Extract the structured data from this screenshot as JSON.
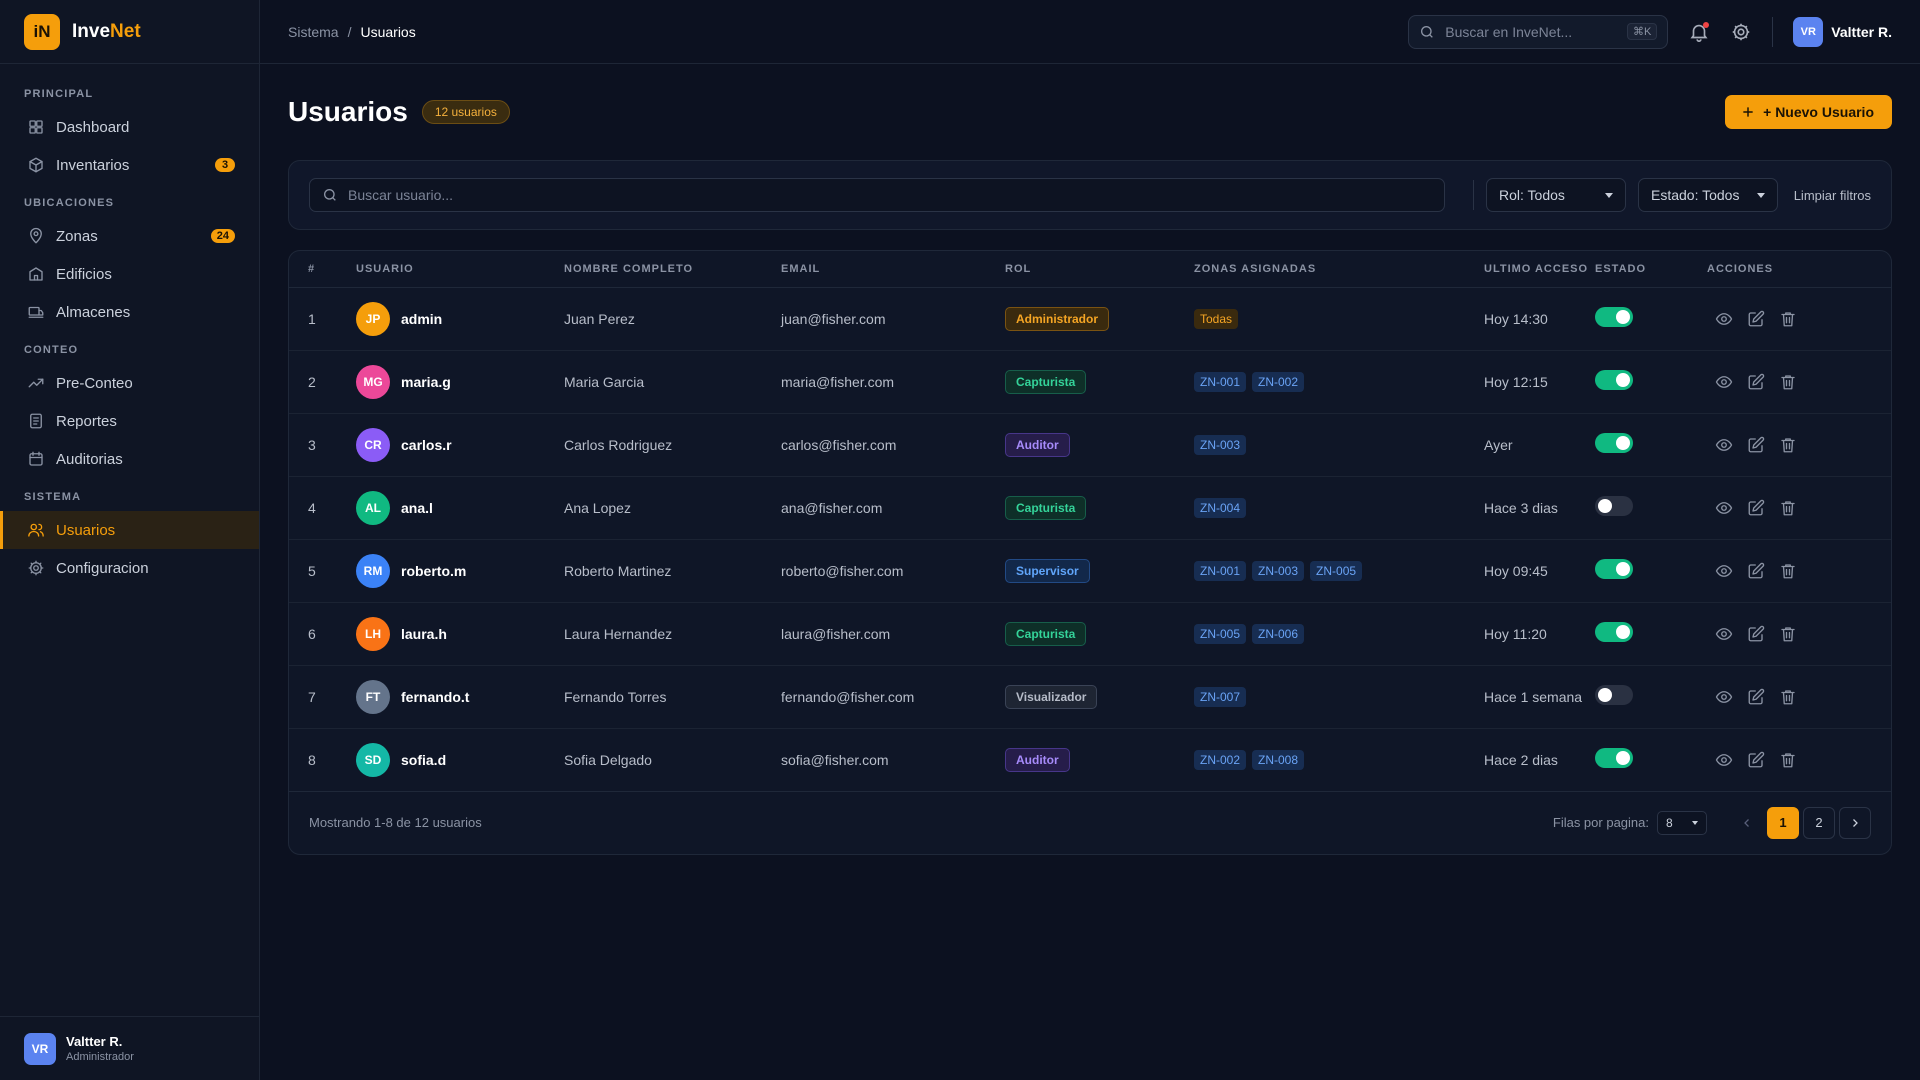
{
  "app": {
    "logo_text": "iN",
    "name_part1": "Inve",
    "name_part2": "Net"
  },
  "sidebar": {
    "sections": [
      {
        "title": "PRINCIPAL",
        "items": [
          {
            "label": "Dashboard",
            "icon": "dashboard-icon"
          },
          {
            "label": "Inventarios",
            "icon": "box-icon",
            "badge": "3"
          }
        ]
      },
      {
        "title": "UBICACIONES",
        "items": [
          {
            "label": "Zonas",
            "icon": "map-pin-icon",
            "badge": "24"
          },
          {
            "label": "Edificios",
            "icon": "building-icon"
          },
          {
            "label": "Almacenes",
            "icon": "warehouse-icon"
          }
        ]
      },
      {
        "title": "CONTEO",
        "items": [
          {
            "label": "Pre-Conteo",
            "icon": "trend-icon"
          },
          {
            "label": "Reportes",
            "icon": "report-icon"
          },
          {
            "label": "Auditorias",
            "icon": "calendar-icon"
          }
        ]
      },
      {
        "title": "SISTEMA",
        "items": [
          {
            "label": "Usuarios",
            "icon": "users-icon",
            "active": true
          },
          {
            "label": "Configuracion",
            "icon": "gear-icon"
          }
        ]
      }
    ],
    "footer": {
      "initials": "VR",
      "name": "Valtter R.",
      "role": "Administrador"
    }
  },
  "topbar": {
    "breadcrumb": [
      "Sistema",
      "Usuarios"
    ],
    "search_placeholder": "Buscar en InveNet...",
    "search_shortcut": "⌘K",
    "user_initials": "VR",
    "user_name": "Valtter R."
  },
  "page": {
    "title": "Usuarios",
    "count_badge": "12 usuarios",
    "new_button": "+ Nuevo Usuario"
  },
  "filters": {
    "search_placeholder": "Buscar usuario...",
    "rol": "Rol: Todos",
    "estado": "Estado: Todos",
    "clear": "Limpiar filtros"
  },
  "table": {
    "headers": [
      "#",
      "USUARIO",
      "NOMBRE COMPLETO",
      "EMAIL",
      "ROL",
      "ZONAS ASIGNADAS",
      "ULTIMO ACCESO",
      "ESTADO",
      "ACCIONES"
    ],
    "rows": [
      {
        "num": "1",
        "initials": "JP",
        "avatar_color": "#f59e0b",
        "user": "admin",
        "full": "Juan Perez",
        "email": "juan@fisher.com",
        "role": "Administrador",
        "role_style": "amber",
        "zones": [
          "Todas"
        ],
        "zone_style": "amber",
        "last": "Hoy 14:30",
        "active": true
      },
      {
        "num": "2",
        "initials": "MG",
        "avatar_color": "#ec4899",
        "user": "maria.g",
        "full": "Maria Garcia",
        "email": "maria@fisher.com",
        "role": "Capturista",
        "role_style": "green",
        "zones": [
          "ZN-001",
          "ZN-002"
        ],
        "zone_style": "blue",
        "last": "Hoy 12:15",
        "active": true
      },
      {
        "num": "3",
        "initials": "CR",
        "avatar_color": "#8b5cf6",
        "user": "carlos.r",
        "full": "Carlos Rodriguez",
        "email": "carlos@fisher.com",
        "role": "Auditor",
        "role_style": "purple",
        "zones": [
          "ZN-003"
        ],
        "zone_style": "blue",
        "last": "Ayer",
        "active": true
      },
      {
        "num": "4",
        "initials": "AL",
        "avatar_color": "#10b981",
        "user": "ana.l",
        "full": "Ana Lopez",
        "email": "ana@fisher.com",
        "role": "Capturista",
        "role_style": "green",
        "zones": [
          "ZN-004"
        ],
        "zone_style": "blue",
        "last": "Hace 3 dias",
        "active": false
      },
      {
        "num": "5",
        "initials": "RM",
        "avatar_color": "#3b82f6",
        "user": "roberto.m",
        "full": "Roberto Martinez",
        "email": "roberto@fisher.com",
        "role": "Supervisor",
        "role_style": "blue",
        "zones": [
          "ZN-001",
          "ZN-003",
          "ZN-005"
        ],
        "zone_style": "blue",
        "last": "Hoy 09:45",
        "active": true
      },
      {
        "num": "6",
        "initials": "LH",
        "avatar_color": "#f97316",
        "user": "laura.h",
        "full": "Laura Hernandez",
        "email": "laura@fisher.com",
        "role": "Capturista",
        "role_style": "green",
        "zones": [
          "ZN-005",
          "ZN-006"
        ],
        "zone_style": "blue",
        "last": "Hoy 11:20",
        "active": true
      },
      {
        "num": "7",
        "initials": "FT",
        "avatar_color": "#64748b",
        "user": "fernando.t",
        "full": "Fernando Torres",
        "email": "fernando@fisher.com",
        "role": "Visualizador",
        "role_style": "gray",
        "zones": [
          "ZN-007"
        ],
        "zone_style": "blue",
        "last": "Hace 1 semana",
        "active": false
      },
      {
        "num": "8",
        "initials": "SD",
        "avatar_color": "#14b8a6",
        "user": "sofia.d",
        "full": "Sofia Delgado",
        "email": "sofia@fisher.com",
        "role": "Auditor",
        "role_style": "purple",
        "zones": [
          "ZN-002",
          "ZN-008"
        ],
        "zone_style": "blue",
        "last": "Hace 2 dias",
        "active": true
      }
    ]
  },
  "footer": {
    "showing": "Mostrando 1-8 de 12 usuarios",
    "rows_label": "Filas por pagina:",
    "rows_value": "8",
    "pages": [
      "1",
      "2"
    ],
    "current_page": "1"
  }
}
